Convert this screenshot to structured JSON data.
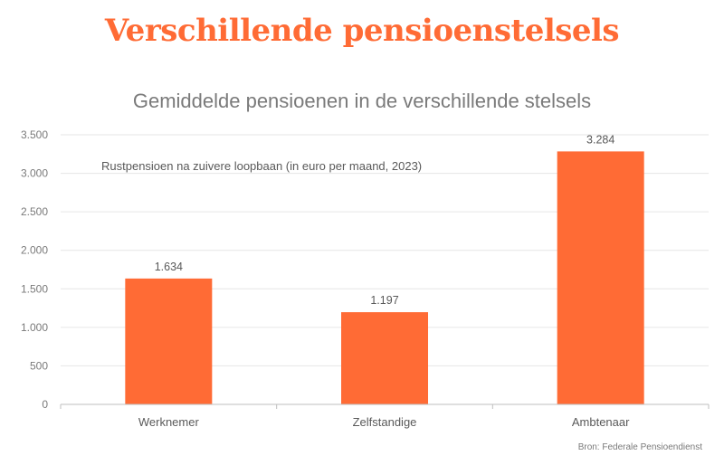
{
  "header": {
    "headline": "Verschillende pensioenstelsels"
  },
  "source": "Bron: Federale Pensioendienst",
  "colors": {
    "accent": "#ff6b35",
    "bar": "#ff6b35",
    "grid": "#e6e6e6",
    "axis": "#bfbfbf"
  },
  "chart_data": {
    "type": "bar",
    "title": "Gemiddelde pensioenen in de verschillende stelsels",
    "subtitle": "Rustpensioen na zuivere loopbaan (in euro per maand, 2023)",
    "categories": [
      "Werknemer",
      "Zelfstandige",
      "Ambtenaar"
    ],
    "values": [
      1634,
      1197,
      3284
    ],
    "value_labels": [
      "1.634",
      "1.197",
      "3.284"
    ],
    "yticks": [
      0,
      500,
      1000,
      1500,
      2000,
      2500,
      3000,
      3500
    ],
    "ytick_labels": [
      "0",
      "500",
      "1.000",
      "1.500",
      "2.000",
      "2.500",
      "3.000",
      "3.500"
    ],
    "ylim": [
      0,
      3500
    ],
    "xlabel": "",
    "ylabel": "",
    "grid": true,
    "legend": "none"
  }
}
